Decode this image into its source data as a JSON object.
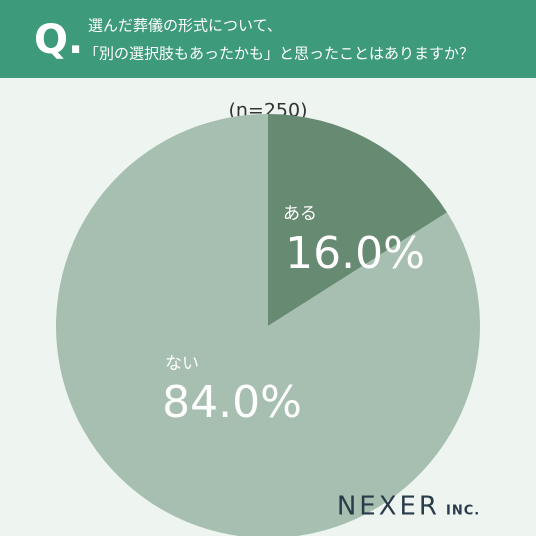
{
  "chart_data": {
    "type": "pie",
    "q_mark": "Q.",
    "title_lines": [
      "選んだ葬儀の形式について、",
      "「別の選択肢もあったかも」と思ったことはありますか？"
    ],
    "note": "(n=250)",
    "categories": [
      "ある",
      "ない"
    ],
    "values": [
      16.0,
      84.0
    ],
    "value_labels": [
      "16.0%",
      "84.0%"
    ],
    "colors": [
      "#678a72",
      "#a6bfb1"
    ]
  },
  "logo": {
    "name": "NEXER",
    "suffix": "INC."
  }
}
